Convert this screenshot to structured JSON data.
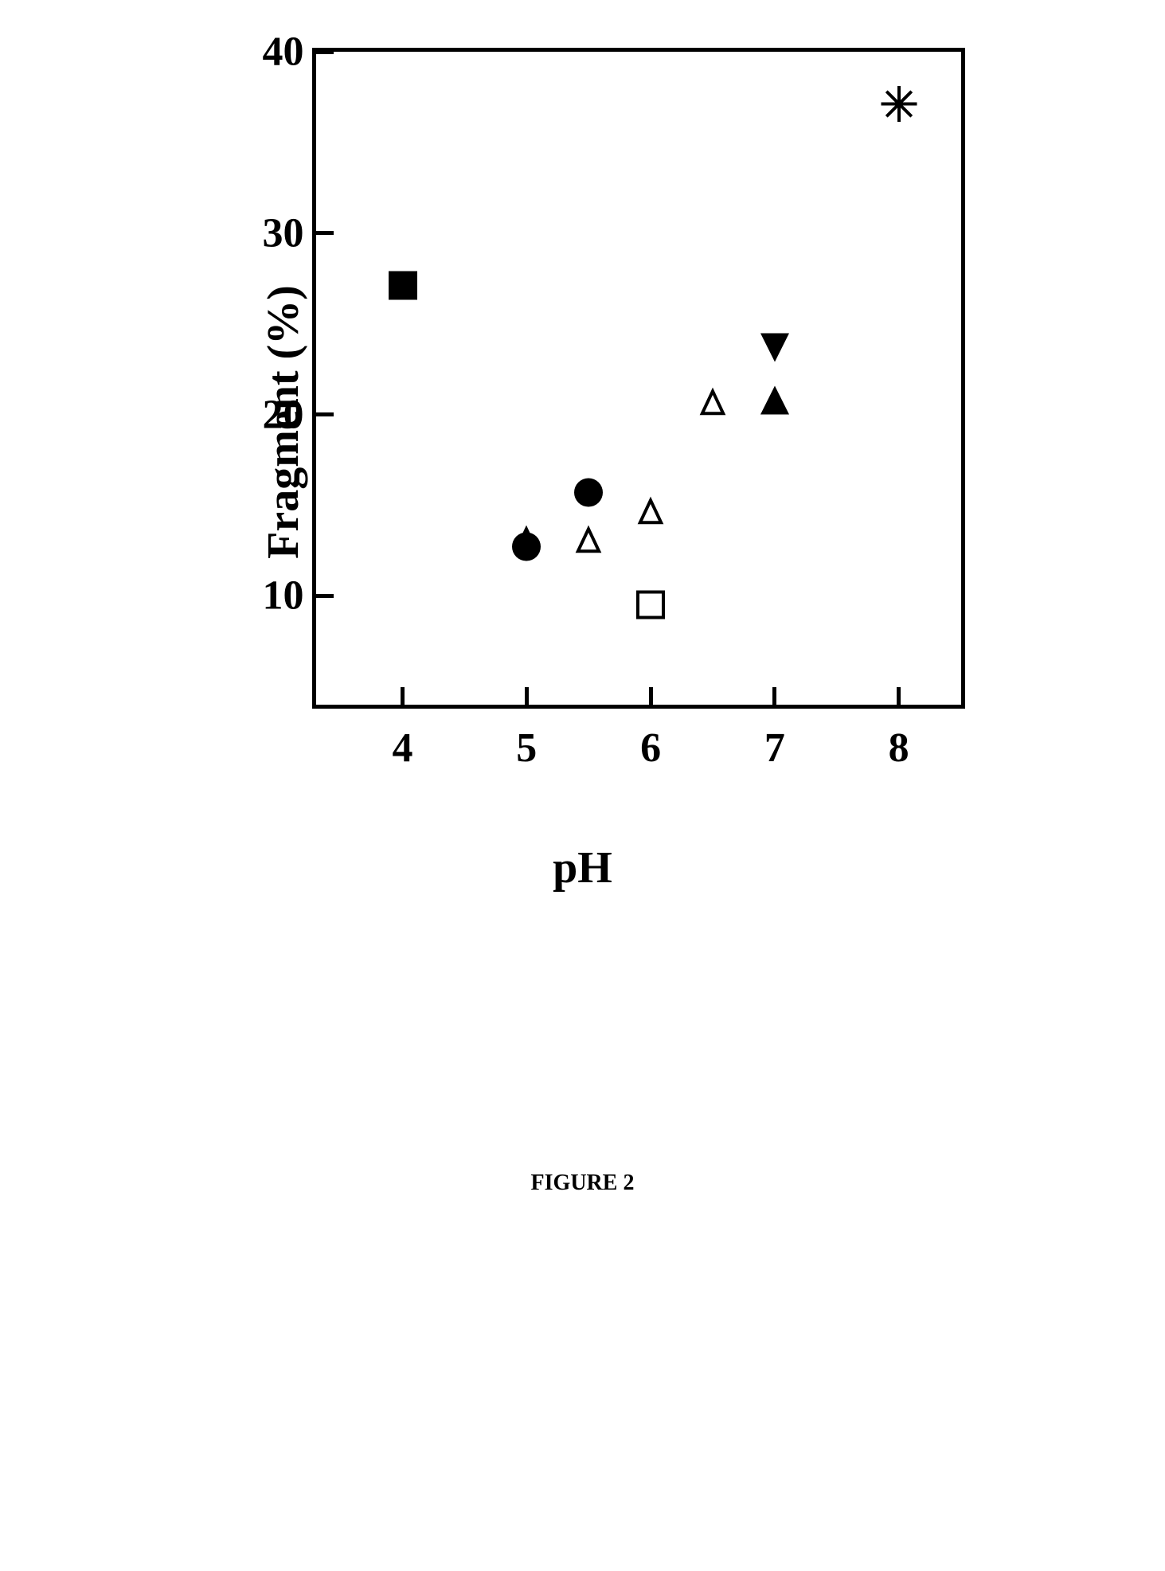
{
  "chart": {
    "type": "scatter",
    "xlabel": "pH",
    "ylabel": "Fragment (%)",
    "label_fontsize": 56,
    "tick_fontsize": 52,
    "background_color": "#ffffff",
    "border_color": "#000000",
    "border_width": 5,
    "xlim": [
      3.3,
      8.5
    ],
    "ylim": [
      4,
      40
    ],
    "xticks": [
      4,
      5,
      6,
      7,
      8
    ],
    "yticks": [
      10,
      20,
      30,
      40
    ],
    "tick_length": 22,
    "marker_size": 36,
    "marker_stroke_width": 4,
    "points": [
      {
        "x": 4.0,
        "y": 27.0,
        "marker": "filled-square",
        "color": "#000000"
      },
      {
        "x": 5.0,
        "y": 13.0,
        "marker": "open-triangle-up",
        "color": "#000000"
      },
      {
        "x": 5.0,
        "y": 12.6,
        "marker": "filled-circle",
        "color": "#000000"
      },
      {
        "x": 5.5,
        "y": 15.6,
        "marker": "filled-circle",
        "color": "#000000"
      },
      {
        "x": 5.5,
        "y": 13.0,
        "marker": "open-triangle-up",
        "color": "#000000"
      },
      {
        "x": 6.0,
        "y": 14.6,
        "marker": "open-triangle-up",
        "color": "#000000"
      },
      {
        "x": 6.0,
        "y": 9.4,
        "marker": "open-square",
        "color": "#000000"
      },
      {
        "x": 6.5,
        "y": 20.6,
        "marker": "open-triangle-up",
        "color": "#000000"
      },
      {
        "x": 7.0,
        "y": 23.6,
        "marker": "filled-triangle-down",
        "color": "#000000"
      },
      {
        "x": 7.0,
        "y": 20.7,
        "marker": "filled-triangle-up",
        "color": "#000000"
      },
      {
        "x": 8.0,
        "y": 37.0,
        "marker": "asterisk",
        "color": "#000000"
      }
    ]
  },
  "caption": "FIGURE 2",
  "caption_fontsize": 28
}
